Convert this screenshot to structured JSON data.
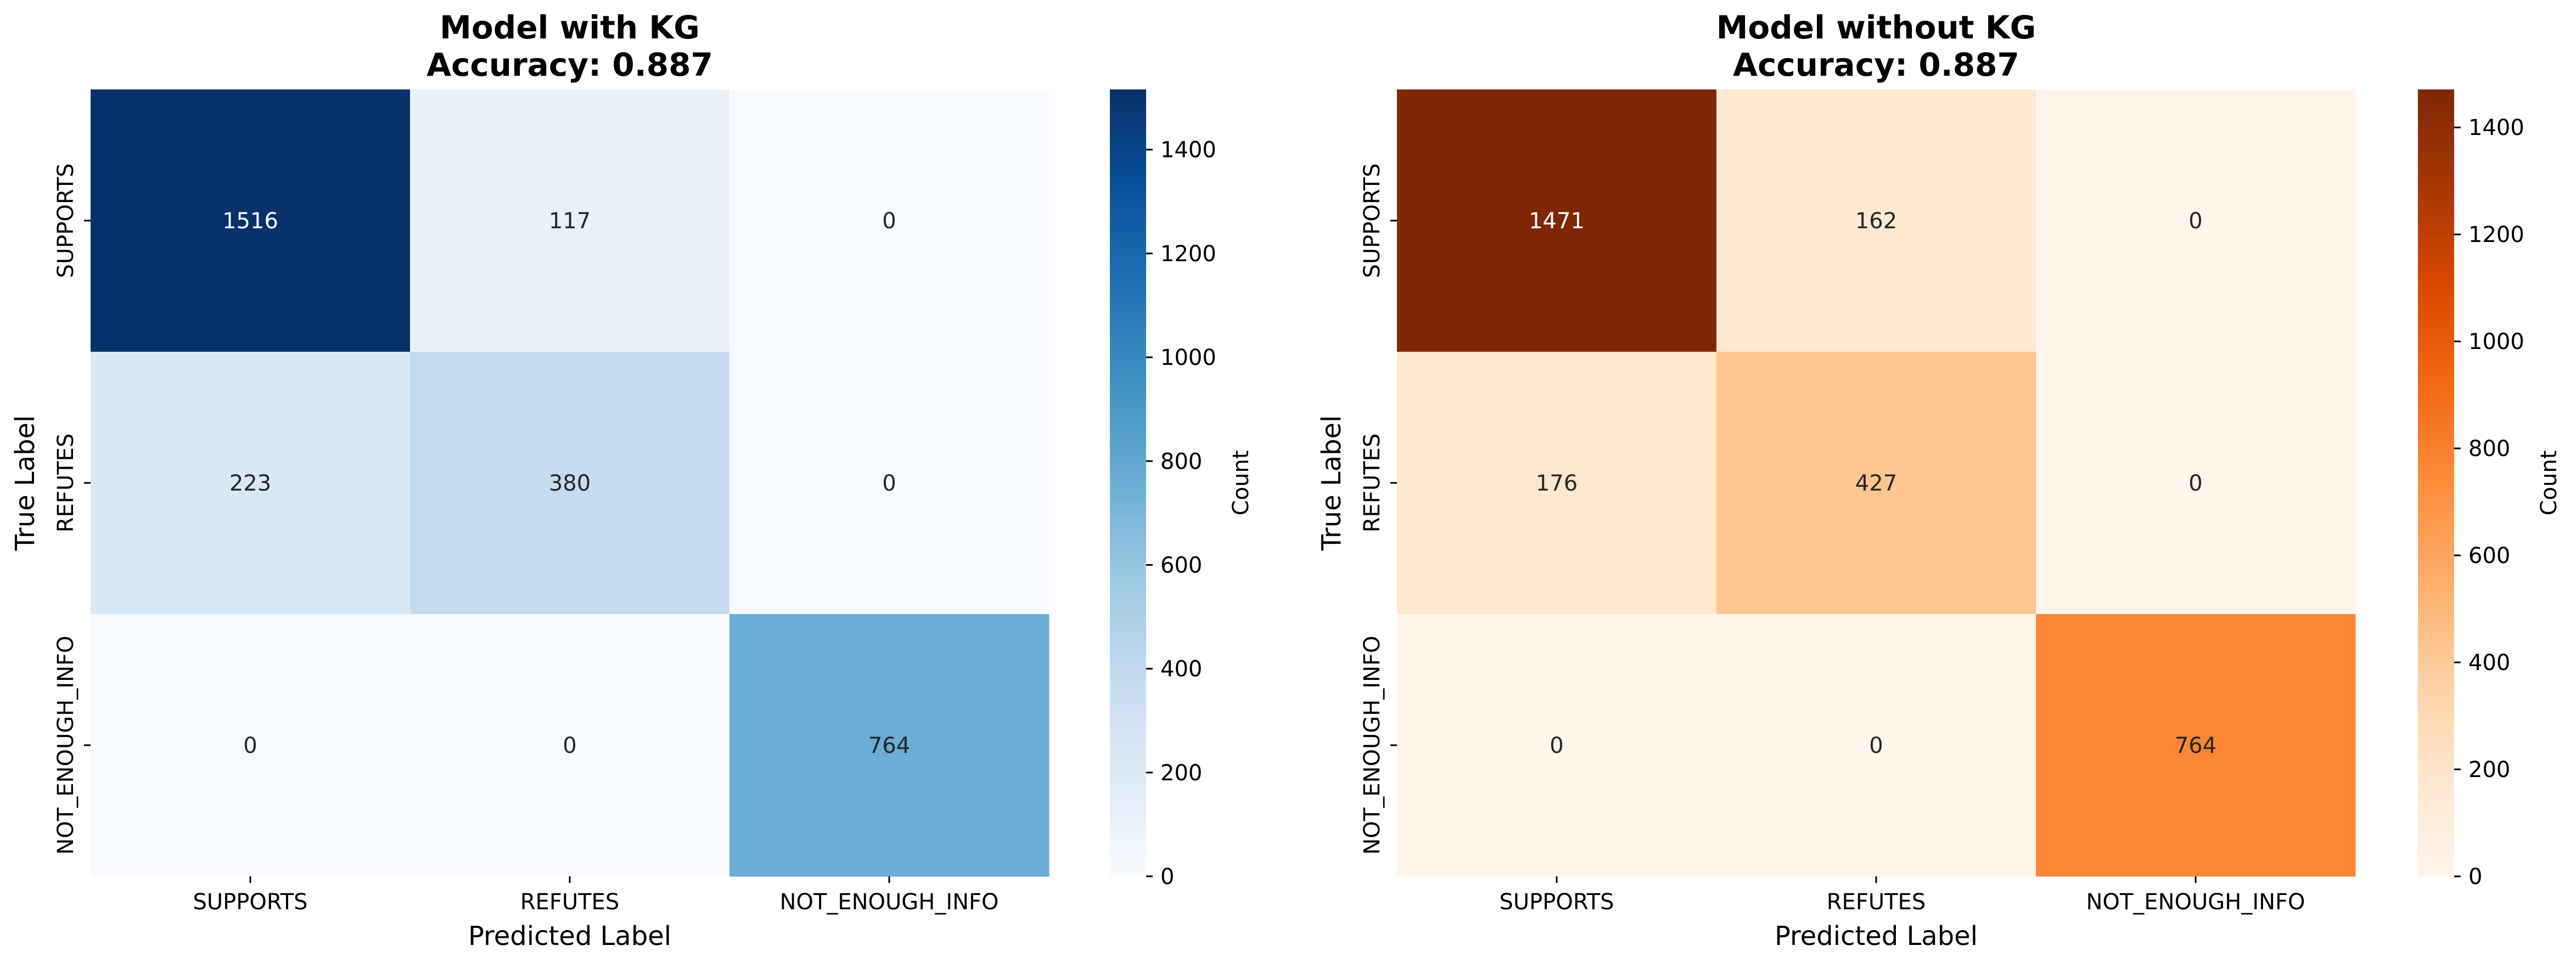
{
  "chart_data": [
    {
      "type": "heatmap",
      "title": "Model with KG\nAccuracy: 0.887",
      "xlabel": "Predicted Label",
      "ylabel": "True Label",
      "x_categories": [
        "SUPPORTS",
        "REFUTES",
        "NOT_ENOUGH_INFO"
      ],
      "y_categories": [
        "SUPPORTS",
        "REFUTES",
        "NOT_ENOUGH_INFO"
      ],
      "values": [
        [
          1516,
          117,
          0
        ],
        [
          223,
          380,
          0
        ],
        [
          0,
          0,
          764
        ]
      ],
      "colormap": "Blues",
      "colorbar": {
        "label": "Count",
        "range": [
          0,
          1516
        ],
        "ticks": [
          0,
          200,
          400,
          600,
          800,
          1000,
          1200,
          1400
        ]
      }
    },
    {
      "type": "heatmap",
      "title": "Model without KG\nAccuracy: 0.887",
      "xlabel": "Predicted Label",
      "ylabel": "True Label",
      "x_categories": [
        "SUPPORTS",
        "REFUTES",
        "NOT_ENOUGH_INFO"
      ],
      "y_categories": [
        "SUPPORTS",
        "REFUTES",
        "NOT_ENOUGH_INFO"
      ],
      "values": [
        [
          1471,
          162,
          0
        ],
        [
          176,
          427,
          0
        ],
        [
          0,
          0,
          764
        ]
      ],
      "colormap": "Oranges",
      "colorbar": {
        "label": "Count",
        "range": [
          0,
          1471
        ],
        "ticks": [
          0,
          200,
          400,
          600,
          800,
          1000,
          1200,
          1400
        ]
      }
    }
  ]
}
